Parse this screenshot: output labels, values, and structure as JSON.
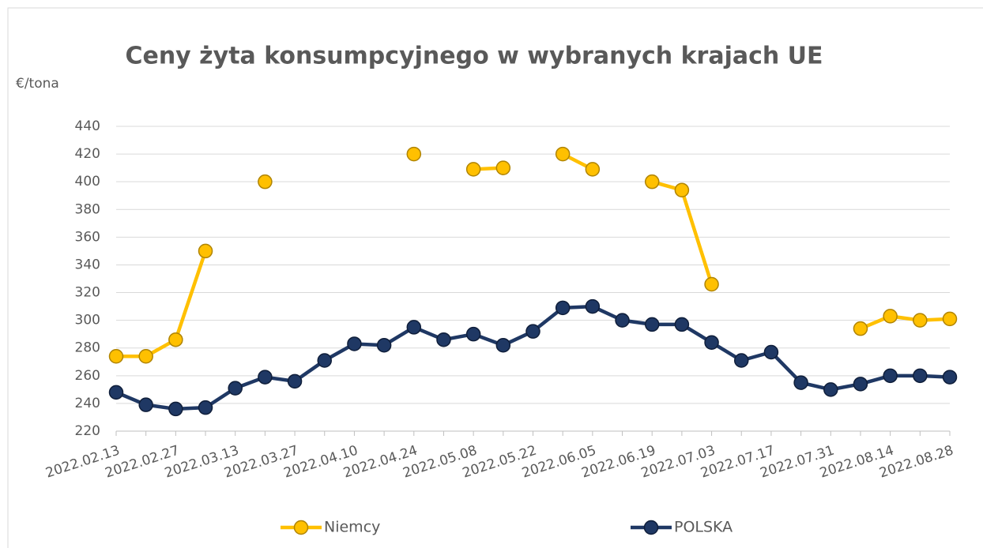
{
  "chart_data": {
    "type": "line",
    "title": "Ceny żyta konsumpcyjnego w wybranych krajach UE",
    "y_label": "€/tona",
    "categories": [
      "2022.02.13",
      null,
      "2022.02.27",
      null,
      "2022.03.13",
      null,
      "2022.03.27",
      null,
      "2022.04.10",
      null,
      "2022.04.24",
      null,
      "2022.05.08",
      null,
      "2022.05.22",
      null,
      "2022.06.05",
      null,
      "2022.06.19",
      null,
      "2022.07.03",
      null,
      "2022.07.17",
      null,
      "2022.07.31",
      null,
      "2022.08.14",
      null,
      "2022.08.28"
    ],
    "series": [
      {
        "name": "Niemcy",
        "color": "#FFC000",
        "values": [
          274,
          274,
          286,
          350,
          null,
          400,
          null,
          null,
          null,
          null,
          420,
          null,
          409,
          410,
          null,
          420,
          409,
          null,
          400,
          394,
          326,
          null,
          null,
          null,
          null,
          294,
          303,
          300,
          301
        ]
      },
      {
        "name": "POLSKA",
        "color": "#1F3864",
        "values": [
          248,
          239,
          236,
          237,
          251,
          259,
          256,
          271,
          283,
          282,
          295,
          286,
          290,
          282,
          292,
          309,
          310,
          300,
          297,
          297,
          284,
          271,
          277,
          255,
          250,
          254,
          260,
          260,
          259
        ]
      }
    ],
    "ylim": [
      220,
      440
    ],
    "yticks": [
      220,
      240,
      260,
      280,
      300,
      320,
      340,
      360,
      380,
      400,
      420,
      440
    ],
    "grid": true,
    "legend": "bottom"
  }
}
